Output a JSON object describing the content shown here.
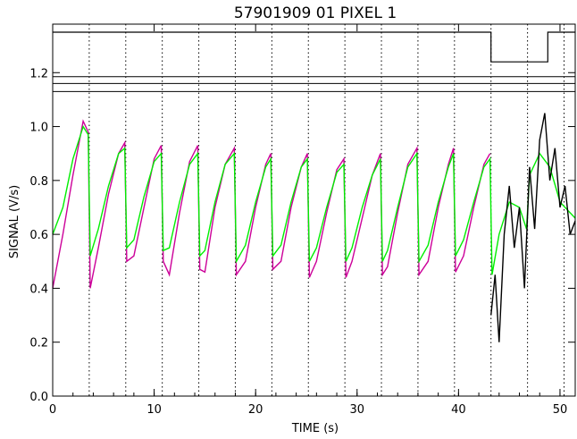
{
  "chart_data": {
    "type": "line",
    "title": "57901909 01 PIXEL 1",
    "xlabel": "TIME (s)",
    "ylabel": "SIGNAL (V/s)",
    "xlim": [
      0,
      51.5
    ],
    "ylim": [
      0.0,
      1.38
    ],
    "x_ticks": [
      0,
      10,
      20,
      30,
      40,
      50
    ],
    "y_ticks": [
      0.0,
      0.2,
      0.4,
      0.6,
      0.8,
      1.0,
      1.2
    ],
    "grid": false,
    "legend": "none",
    "cycle_boundaries_s": [
      3.6,
      7.2,
      10.8,
      14.4,
      18.0,
      21.6,
      25.2,
      28.8,
      32.4,
      36.0,
      39.6,
      43.2,
      46.8,
      50.4
    ],
    "series": [
      {
        "color": "#cc0099",
        "x": [
          0,
          1,
          2,
          3,
          3.5,
          3.7,
          4.5,
          5.5,
          6.5,
          7.1,
          7.3,
          8,
          9,
          10,
          10.7,
          10.9,
          11.5,
          12.5,
          13.5,
          14.3,
          14.5,
          15,
          16,
          17,
          17.9,
          18.1,
          19,
          20,
          21,
          21.5,
          21.7,
          22.5,
          23.5,
          24.5,
          25.1,
          25.3,
          26,
          27,
          28,
          28.7,
          28.9,
          29.5,
          30.5,
          31.5,
          32.3,
          32.5,
          33,
          34,
          35,
          35.9,
          36.1,
          37,
          38,
          39,
          39.5,
          39.7,
          40.5,
          41.5,
          42.5,
          43.1
        ],
        "y": [
          0.4,
          0.6,
          0.82,
          1.02,
          0.98,
          0.4,
          0.55,
          0.75,
          0.9,
          0.94,
          0.5,
          0.52,
          0.7,
          0.88,
          0.93,
          0.5,
          0.45,
          0.68,
          0.87,
          0.93,
          0.47,
          0.46,
          0.7,
          0.86,
          0.92,
          0.45,
          0.5,
          0.7,
          0.86,
          0.9,
          0.47,
          0.5,
          0.7,
          0.85,
          0.9,
          0.44,
          0.5,
          0.68,
          0.84,
          0.88,
          0.44,
          0.5,
          0.66,
          0.82,
          0.9,
          0.45,
          0.48,
          0.68,
          0.86,
          0.92,
          0.45,
          0.5,
          0.7,
          0.86,
          0.92,
          0.46,
          0.52,
          0.7,
          0.86,
          0.9
        ]
      },
      {
        "color": "#00ee00",
        "x": [
          0,
          1,
          2,
          3,
          3.5,
          3.7,
          4.5,
          5.5,
          6.5,
          7.1,
          7.3,
          8,
          9,
          10,
          10.7,
          10.9,
          11.5,
          12.5,
          13.5,
          14.3,
          14.5,
          15,
          16,
          17,
          17.9,
          18.1,
          19,
          20,
          21,
          21.5,
          21.7,
          22.5,
          23.5,
          24.5,
          25.1,
          25.3,
          26,
          27,
          28,
          28.7,
          28.9,
          29.5,
          30.5,
          31.5,
          32.3,
          32.5,
          33,
          34,
          35,
          35.9,
          36.1,
          37,
          38,
          39,
          39.5,
          39.7,
          40.5,
          41.5,
          42.5,
          43.1,
          43.3,
          44,
          45,
          46,
          46.7,
          47,
          48,
          49,
          50,
          51.5
        ],
        "y": [
          0.6,
          0.7,
          0.88,
          1.0,
          0.97,
          0.52,
          0.62,
          0.78,
          0.9,
          0.92,
          0.55,
          0.58,
          0.74,
          0.87,
          0.9,
          0.54,
          0.55,
          0.72,
          0.86,
          0.9,
          0.52,
          0.54,
          0.72,
          0.86,
          0.9,
          0.5,
          0.56,
          0.72,
          0.85,
          0.88,
          0.52,
          0.56,
          0.72,
          0.85,
          0.88,
          0.5,
          0.55,
          0.7,
          0.83,
          0.86,
          0.5,
          0.55,
          0.7,
          0.82,
          0.88,
          0.5,
          0.54,
          0.7,
          0.85,
          0.9,
          0.5,
          0.56,
          0.72,
          0.85,
          0.9,
          0.52,
          0.58,
          0.72,
          0.85,
          0.88,
          0.45,
          0.6,
          0.72,
          0.7,
          0.62,
          0.82,
          0.9,
          0.85,
          0.72,
          0.66
        ]
      },
      {
        "color": "#000000",
        "x": [
          43.2,
          43.6,
          44,
          44.5,
          45,
          45.5,
          46,
          46.5,
          47,
          47.5,
          48,
          48.5,
          49,
          49.5,
          50,
          50.5,
          51,
          51.5
        ],
        "y": [
          0.3,
          0.45,
          0.2,
          0.6,
          0.78,
          0.55,
          0.7,
          0.4,
          0.85,
          0.62,
          0.95,
          1.05,
          0.8,
          0.92,
          0.7,
          0.78,
          0.6,
          0.65
        ]
      }
    ],
    "top_bands": [
      {
        "name": "state",
        "x": [
          0,
          43.2,
          43.2,
          48.8,
          48.8,
          51.5
        ],
        "y": [
          1.35,
          1.35,
          1.24,
          1.24,
          1.35,
          1.35
        ]
      }
    ],
    "horizontal_lines_y": [
      1.185,
      1.16,
      1.13
    ]
  }
}
